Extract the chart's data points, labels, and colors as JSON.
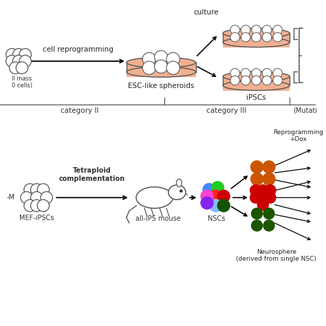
{
  "bg_color": "#ffffff",
  "top_panel": {
    "dish_color": "#f0b090",
    "dish_edge_color": "#555555",
    "text_reprogramming": "cell reprogramming",
    "text_esc": "ESC-like spheroids",
    "text_ipscs": "iPSCs",
    "text_culture": "culture",
    "text_cat2": "category II",
    "text_cat3": "category III",
    "text_mutati": "(Mutati"
  },
  "bottom_panel": {
    "text_mef": "MEF-iPSCs",
    "text_allips": "all-iPS mouse",
    "text_nscs": "NSCs",
    "text_reprog": "Reprogramming\n+Dox",
    "text_neuro": "Neurosphere\n(derived from single NSC)",
    "text_tetrap": "Tetraploid\ncomplementation",
    "nsc_colors": [
      "#4488ff",
      "#22cc22",
      "#ff2222",
      "#cc0000",
      "#ff44cc",
      "#8822ee",
      "#88bbff",
      "#115500"
    ],
    "orange_cluster_color": "#cc5500",
    "red_cluster_color": "#cc0000",
    "green_cluster_color": "#1a5500"
  }
}
